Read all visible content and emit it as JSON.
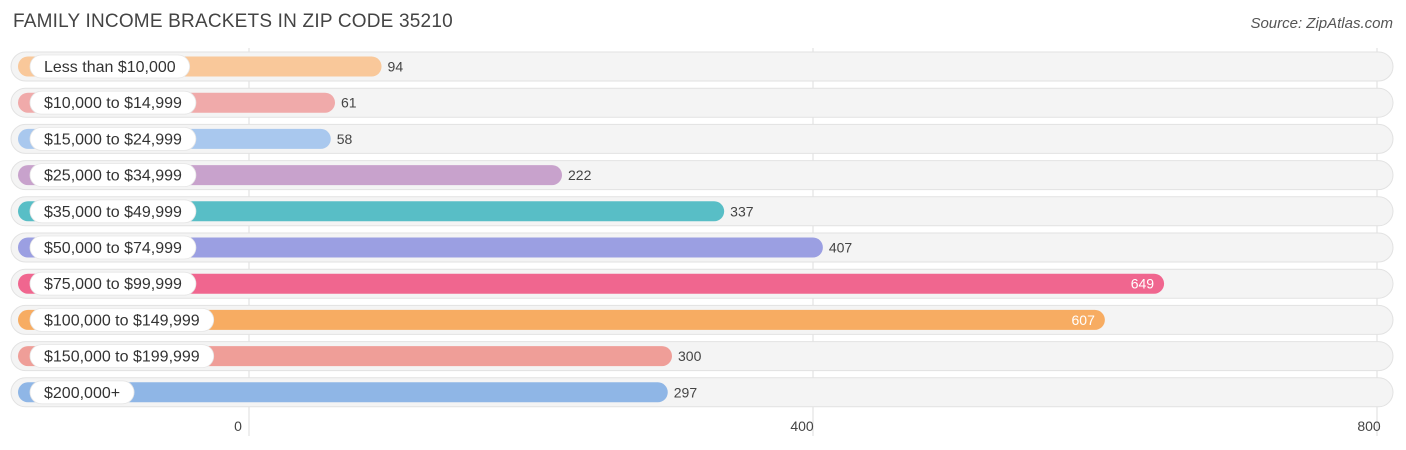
{
  "title": "FAMILY INCOME BRACKETS IN ZIP CODE 35210",
  "source": "Source: ZipAtlas.com",
  "chart_data": {
    "type": "bar",
    "orientation": "horizontal",
    "title": "FAMILY INCOME BRACKETS IN ZIP CODE 35210",
    "categories": [
      "Less than $10,000",
      "$10,000 to $14,999",
      "$15,000 to $24,999",
      "$25,000 to $34,999",
      "$35,000 to $49,999",
      "$50,000 to $74,999",
      "$75,000 to $99,999",
      "$100,000 to $149,999",
      "$150,000 to $199,999",
      "$200,000+"
    ],
    "values": [
      94,
      61,
      58,
      222,
      337,
      407,
      649,
      607,
      300,
      297
    ],
    "colors": [
      "#f9c89a",
      "#f0aaaa",
      "#a9c8ee",
      "#c8a2cc",
      "#58bec6",
      "#9b9fe2",
      "#f0668f",
      "#f7ac62",
      "#ef9e98",
      "#8fb6e6"
    ],
    "xlim": [
      0,
      800
    ],
    "xticks": [
      0,
      400,
      800
    ],
    "grid": true
  }
}
